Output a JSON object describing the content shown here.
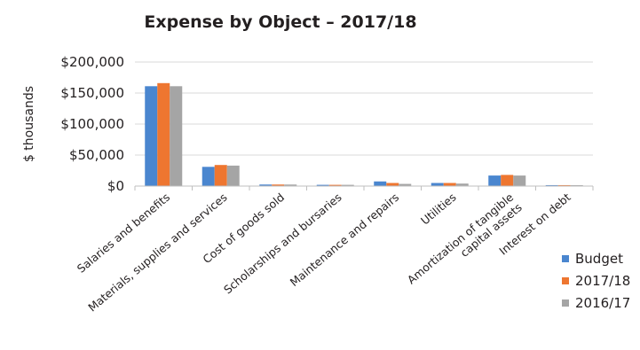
{
  "chart_data": {
    "type": "bar",
    "title": "Expense by Object – 2017/18",
    "ylabel": "$ thousands",
    "xlabel": "",
    "ylim": [
      0,
      200000
    ],
    "yticks": [
      0,
      50000,
      100000,
      150000,
      200000
    ],
    "ytick_labels": [
      "$0",
      "$50,000",
      "$100,000",
      "$150,000",
      "$200,000"
    ],
    "grid": true,
    "legend_position": "bottom-right",
    "categories": [
      [
        "Salaries and benefits"
      ],
      [
        "Materials, supplies and services"
      ],
      [
        "Cost of goods sold"
      ],
      [
        "Scholarships and bursaries"
      ],
      [
        "Maintenance and repairs"
      ],
      [
        "Utilities"
      ],
      [
        "Amortization of tangible",
        "capital assets"
      ],
      [
        "Interest on debt"
      ]
    ],
    "series": [
      {
        "name": "Budget",
        "color": "#4a86cf",
        "values": [
          161000,
          31000,
          2500,
          2000,
          7500,
          5000,
          17000,
          1500
        ]
      },
      {
        "name": "2017/18",
        "color": "#ee7630",
        "values": [
          166000,
          34000,
          2500,
          2000,
          5000,
          5000,
          18000,
          1500
        ]
      },
      {
        "name": "2016/17",
        "color": "#a5a5a5",
        "values": [
          161000,
          33000,
          2500,
          2000,
          3500,
          4000,
          17000,
          1500
        ]
      }
    ]
  }
}
